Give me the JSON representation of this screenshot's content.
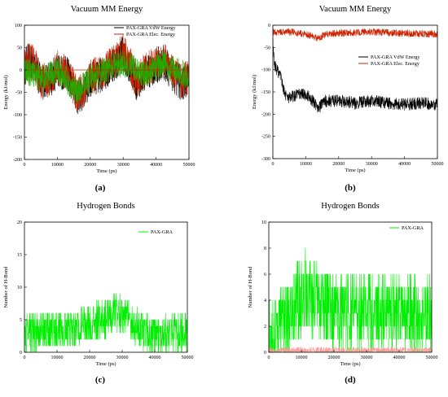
{
  "figure": {
    "panels": [
      {
        "letter": "(a)"
      },
      {
        "letter": "(b)"
      },
      {
        "letter": "(c)"
      },
      {
        "letter": "(d)"
      }
    ]
  },
  "chart_data": [
    {
      "id": "a",
      "type": "line",
      "title": "Vacuum MM Energy",
      "xlabel": "Time (ps)",
      "ylabel": "Energy (kJ/mol)",
      "xlim": [
        0,
        50000
      ],
      "ylim": [
        -200,
        100
      ],
      "xticks": [
        0,
        10000,
        20000,
        30000,
        40000,
        50000
      ],
      "yticks": [
        -200,
        -150,
        -100,
        -50,
        0,
        50,
        100
      ],
      "legend_position": "top-right",
      "grid": false,
      "series": [
        {
          "name": "PAX-GRA VdW Energy",
          "color": "#000000",
          "noise": 40,
          "anchors": [
            [
              0,
              0
            ],
            [
              1000,
              20
            ],
            [
              3000,
              10
            ],
            [
              5000,
              -30
            ],
            [
              8000,
              -20
            ],
            [
              10000,
              0
            ],
            [
              13000,
              -10
            ],
            [
              16000,
              -60
            ],
            [
              18000,
              -50
            ],
            [
              20000,
              -20
            ],
            [
              24000,
              -10
            ],
            [
              28000,
              20
            ],
            [
              30000,
              40
            ],
            [
              32000,
              10
            ],
            [
              34000,
              -30
            ],
            [
              36000,
              -10
            ],
            [
              38000,
              0
            ],
            [
              42000,
              20
            ],
            [
              45000,
              -10
            ],
            [
              48000,
              -30
            ],
            [
              50000,
              -20
            ]
          ]
        },
        {
          "name": "PAX-GRA Elec. Energy",
          "color": "#cc2200",
          "noise": 40,
          "anchors": [
            [
              0,
              0
            ],
            [
              1000,
              25
            ],
            [
              3000,
              15
            ],
            [
              5000,
              -25
            ],
            [
              8000,
              -20
            ],
            [
              10000,
              5
            ],
            [
              13000,
              -5
            ],
            [
              16000,
              -55
            ],
            [
              18000,
              -45
            ],
            [
              20000,
              -15
            ],
            [
              24000,
              -5
            ],
            [
              28000,
              25
            ],
            [
              30000,
              45
            ],
            [
              32000,
              15
            ],
            [
              34000,
              -25
            ],
            [
              36000,
              -5
            ],
            [
              38000,
              5
            ],
            [
              42000,
              25
            ],
            [
              45000,
              -5
            ],
            [
              48000,
              -25
            ],
            [
              50000,
              -15
            ]
          ]
        },
        {
          "name": "",
          "color": "#22aa00",
          "noise": 30,
          "anchors": [
            [
              0,
              0
            ],
            [
              5000,
              -20
            ],
            [
              10000,
              0
            ],
            [
              16000,
              -50
            ],
            [
              20000,
              -20
            ],
            [
              28000,
              15
            ],
            [
              32000,
              10
            ],
            [
              36000,
              -10
            ],
            [
              42000,
              15
            ],
            [
              50000,
              -15
            ]
          ]
        }
      ]
    },
    {
      "id": "b",
      "type": "line",
      "title": "Vacuum MM Energy",
      "xlabel": "Time (ps)",
      "ylabel": "Energy (kJ/mol)",
      "xlim": [
        0,
        50000
      ],
      "ylim": [
        -300,
        0
      ],
      "xticks": [
        0,
        10000,
        20000,
        30000,
        40000,
        50000
      ],
      "yticks": [
        -300,
        -250,
        -200,
        -150,
        -100,
        -50,
        0
      ],
      "legend_position": "center-right",
      "grid": false,
      "series": [
        {
          "name": "PAX-GRA VdW Energy",
          "color": "#000000",
          "noise": 14,
          "anchors": [
            [
              0,
              -40
            ],
            [
              500,
              -90
            ],
            [
              1500,
              -105
            ],
            [
              2500,
              -120
            ],
            [
              3500,
              -150
            ],
            [
              4500,
              -165
            ],
            [
              6000,
              -160
            ],
            [
              8000,
              -155
            ],
            [
              10000,
              -155
            ],
            [
              12000,
              -170
            ],
            [
              14000,
              -185
            ],
            [
              16000,
              -170
            ],
            [
              20000,
              -170
            ],
            [
              25000,
              -175
            ],
            [
              30000,
              -170
            ],
            [
              35000,
              -175
            ],
            [
              40000,
              -178
            ],
            [
              45000,
              -175
            ],
            [
              50000,
              -178
            ]
          ]
        },
        {
          "name": "PAX-GRA Elec. Energy",
          "color": "#cc2200",
          "noise": 8,
          "anchors": [
            [
              0,
              -15
            ],
            [
              5000,
              -15
            ],
            [
              10000,
              -20
            ],
            [
              14000,
              -30
            ],
            [
              16000,
              -20
            ],
            [
              20000,
              -18
            ],
            [
              30000,
              -15
            ],
            [
              40000,
              -18
            ],
            [
              50000,
              -20
            ]
          ]
        }
      ]
    },
    {
      "id": "c",
      "type": "line",
      "title": "Hydrogen Bonds",
      "xlabel": "Time (ps)",
      "ylabel": "Number of H-Bond",
      "xlim": [
        0,
        50000
      ],
      "ylim": [
        0,
        20
      ],
      "xticks": [
        0,
        10000,
        20000,
        30000,
        40000,
        50000
      ],
      "yticks": [
        0,
        5,
        10,
        15,
        20
      ],
      "legend_position": "top-right",
      "grid": false,
      "series": [
        {
          "name": "PAX-GRA",
          "color": "#00ee00",
          "noise": 3,
          "integer": true,
          "min": 0,
          "anchors": [
            [
              0,
              2.5
            ],
            [
              5000,
              3.5
            ],
            [
              10000,
              3.5
            ],
            [
              15000,
              3.5
            ],
            [
              20000,
              4.5
            ],
            [
              25000,
              5
            ],
            [
              28000,
              6
            ],
            [
              31000,
              5.5
            ],
            [
              34000,
              4
            ],
            [
              38000,
              2.5
            ],
            [
              42000,
              2.5
            ],
            [
              46000,
              3
            ],
            [
              50000,
              3
            ]
          ]
        }
      ]
    },
    {
      "id": "d",
      "type": "line",
      "title": "Hydrogen Bonds",
      "xlabel": "Time (ps)",
      "ylabel": "Number of H-Bond",
      "xlim": [
        0,
        50000
      ],
      "ylim": [
        0,
        10
      ],
      "xticks": [
        0,
        10000,
        20000,
        30000,
        40000,
        50000
      ],
      "yticks": [
        0,
        2,
        4,
        6,
        8,
        10
      ],
      "legend_position": "top-right",
      "grid": false,
      "series": [
        {
          "name": "PAX-GRA",
          "color": "#00ee00",
          "noise": 3,
          "integer": true,
          "min": 0,
          "anchors": [
            [
              0,
              1.5
            ],
            [
              3000,
              2
            ],
            [
              6000,
              2.5
            ],
            [
              9000,
              4
            ],
            [
              11000,
              5
            ],
            [
              13000,
              4
            ],
            [
              16000,
              3.5
            ],
            [
              20000,
              3
            ],
            [
              25000,
              3
            ],
            [
              30000,
              3
            ],
            [
              35000,
              3
            ],
            [
              40000,
              3
            ],
            [
              45000,
              3
            ],
            [
              50000,
              3
            ]
          ]
        },
        {
          "name": "",
          "color": "#ff9999",
          "noise": 0.3,
          "integer": false,
          "min": 0,
          "anchors": [
            [
              0,
              0.1
            ],
            [
              50000,
              0.1
            ]
          ]
        }
      ]
    }
  ]
}
